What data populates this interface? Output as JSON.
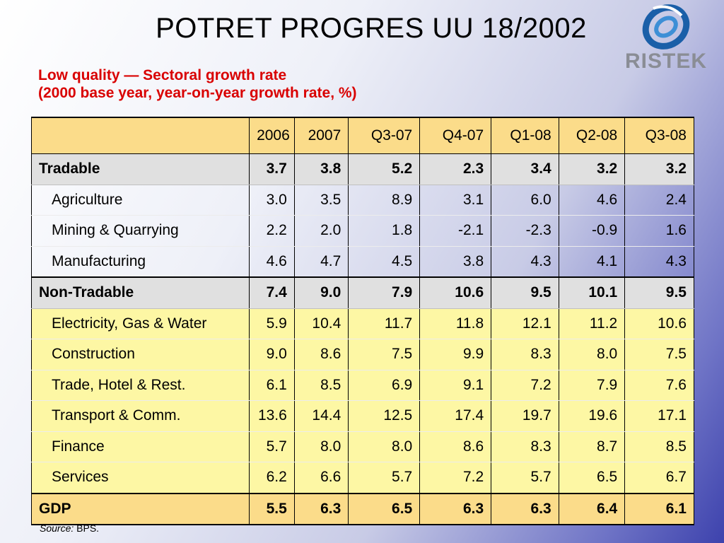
{
  "slide": {
    "title": "POTRET PROGRES UU 18/2002",
    "subtitle_line1": "Low quality — Sectoral growth rate",
    "subtitle_line2": "(2000 base year, year-on-year growth rate, %)",
    "logo_text": "RISTEK",
    "source_label": "Source:",
    "source_value": " BPS."
  },
  "colors": {
    "subtitle": "#d90000",
    "header_bg": "#fbdc8a",
    "group_bg": "#e0e0e0",
    "nontradable_bg": "#fdf7a4",
    "logo_blue": "#1a5fa8",
    "logo_gray": "#8a8d95"
  },
  "table": {
    "columns": [
      "",
      "2006",
      "2007",
      "Q3-07",
      "Q4-07",
      "Q1-08",
      "Q2-08",
      "Q3-08"
    ],
    "rows": [
      {
        "label": "Tradable",
        "values": [
          "3.7",
          "3.8",
          "5.2",
          "2.3",
          "3.4",
          "3.2",
          "3.2"
        ]
      },
      {
        "label": "Agriculture",
        "values": [
          "3.0",
          "3.5",
          "8.9",
          "3.1",
          "6.0",
          "4.6",
          "2.4"
        ]
      },
      {
        "label": "Mining & Quarrying",
        "values": [
          "2.2",
          "2.0",
          "1.8",
          "-2.1",
          "-2.3",
          "-0.9",
          "1.6"
        ]
      },
      {
        "label": "Manufacturing",
        "values": [
          "4.6",
          "4.7",
          "4.5",
          "3.8",
          "4.3",
          "4.1",
          "4.3"
        ]
      },
      {
        "label": "Non-Tradable",
        "values": [
          "7.4",
          "9.0",
          "7.9",
          "10.6",
          "9.5",
          "10.1",
          "9.5"
        ]
      },
      {
        "label": "Electricity, Gas & Water",
        "values": [
          "5.9",
          "10.4",
          "11.7",
          "11.8",
          "12.1",
          "11.2",
          "10.6"
        ]
      },
      {
        "label": "Construction",
        "values": [
          "9.0",
          "8.6",
          "7.5",
          "9.9",
          "8.3",
          "8.0",
          "7.5"
        ]
      },
      {
        "label": "Trade, Hotel & Rest.",
        "values": [
          "6.1",
          "8.5",
          "6.9",
          "9.1",
          "7.2",
          "7.9",
          "7.6"
        ]
      },
      {
        "label": "Transport & Comm.",
        "values": [
          "13.6",
          "14.4",
          "12.5",
          "17.4",
          "19.7",
          "19.6",
          "17.1"
        ]
      },
      {
        "label": "Finance",
        "values": [
          "5.7",
          "8.0",
          "8.0",
          "8.6",
          "8.3",
          "8.7",
          "8.5"
        ]
      },
      {
        "label": "Services",
        "values": [
          "6.2",
          "6.6",
          "5.7",
          "7.2",
          "5.7",
          "6.5",
          "6.7"
        ]
      },
      {
        "label": "GDP",
        "values": [
          "5.5",
          "6.3",
          "6.5",
          "6.3",
          "6.3",
          "6.4",
          "6.1"
        ]
      }
    ]
  }
}
